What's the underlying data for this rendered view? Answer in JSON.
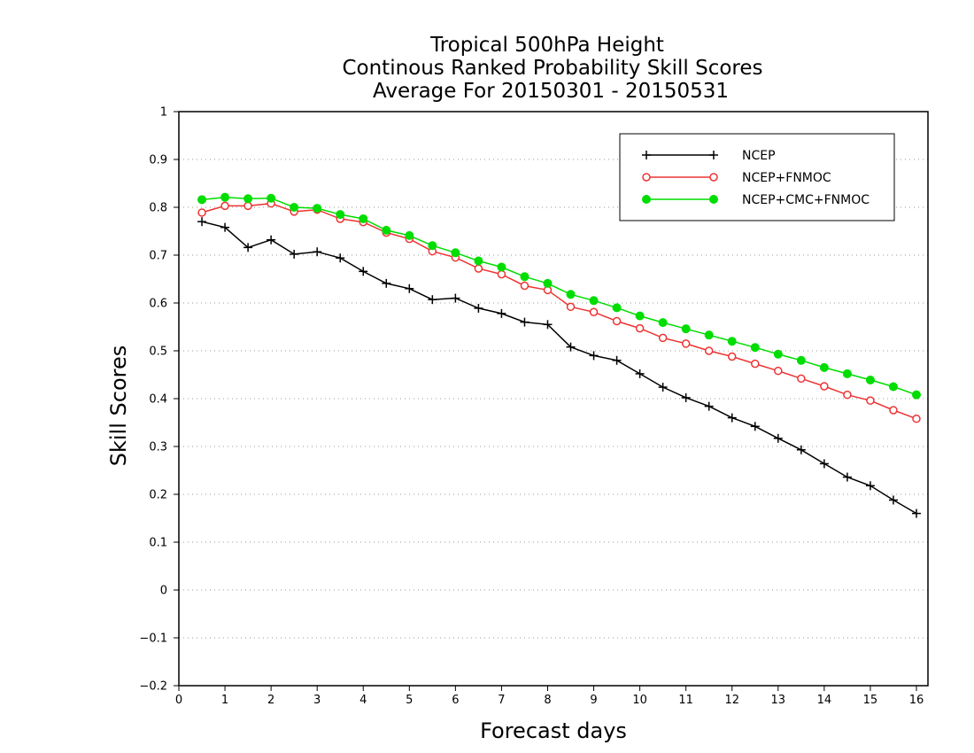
{
  "chart_data": {
    "type": "line",
    "title": [
      "Tropical 500hPa Height",
      "Continous Ranked Probability Skill Scores",
      "Average For 20150301 - 20150531"
    ],
    "xlabel": "Forecast days",
    "ylabel": "Skill Scores",
    "xlim": [
      0,
      16.25
    ],
    "ylim": [
      -0.2,
      1
    ],
    "xticks": [
      "0",
      "1",
      "2",
      "3",
      "4",
      "5",
      "6",
      "7",
      "8",
      "9",
      "10",
      "11",
      "12",
      "13",
      "14",
      "15",
      "16"
    ],
    "yticks": [
      "−0.2",
      "−0.1",
      "0",
      "0.1",
      "0.2",
      "0.3",
      "0.4",
      "0.5",
      "0.6",
      "0.7",
      "0.8",
      "0.9",
      "1"
    ],
    "grid": "horizontal dotted",
    "legend_position": "top-right",
    "x": [
      0.5,
      1,
      1.5,
      2,
      2.5,
      3,
      3.5,
      4,
      4.5,
      5,
      5.5,
      6,
      6.5,
      7,
      7.5,
      8,
      8.5,
      9,
      9.5,
      10,
      10.5,
      11,
      11.5,
      12,
      12.5,
      13,
      13.5,
      14,
      14.5,
      15,
      15.5,
      16
    ],
    "series": [
      {
        "name": "NCEP",
        "color": "#000000",
        "marker": "plus",
        "values": [
          0.77,
          0.758,
          0.716,
          0.732,
          0.702,
          0.707,
          0.694,
          0.666,
          0.641,
          0.63,
          0.607,
          0.61,
          0.589,
          0.578,
          0.56,
          0.555,
          0.508,
          0.49,
          0.48,
          0.452,
          0.424,
          0.402,
          0.384,
          0.36,
          0.342,
          0.317,
          0.293,
          0.264,
          0.236,
          0.218,
          0.188,
          0.16
        ]
      },
      {
        "name": "NCEP+FNMOC",
        "color": "#ee3333",
        "marker": "open-circle",
        "values": [
          0.789,
          0.803,
          0.803,
          0.808,
          0.791,
          0.795,
          0.776,
          0.769,
          0.747,
          0.734,
          0.708,
          0.695,
          0.672,
          0.66,
          0.636,
          0.627,
          0.592,
          0.581,
          0.562,
          0.547,
          0.527,
          0.515,
          0.5,
          0.488,
          0.473,
          0.458,
          0.442,
          0.426,
          0.408,
          0.396,
          0.376,
          0.358
        ]
      },
      {
        "name": "NCEP+CMC+FNMOC",
        "color": "#00dd00",
        "marker": "filled-circle",
        "values": [
          0.816,
          0.821,
          0.818,
          0.819,
          0.8,
          0.798,
          0.785,
          0.776,
          0.752,
          0.741,
          0.72,
          0.705,
          0.688,
          0.675,
          0.655,
          0.641,
          0.618,
          0.605,
          0.59,
          0.573,
          0.559,
          0.546,
          0.533,
          0.52,
          0.507,
          0.493,
          0.48,
          0.465,
          0.452,
          0.439,
          0.425,
          0.408
        ]
      }
    ]
  }
}
